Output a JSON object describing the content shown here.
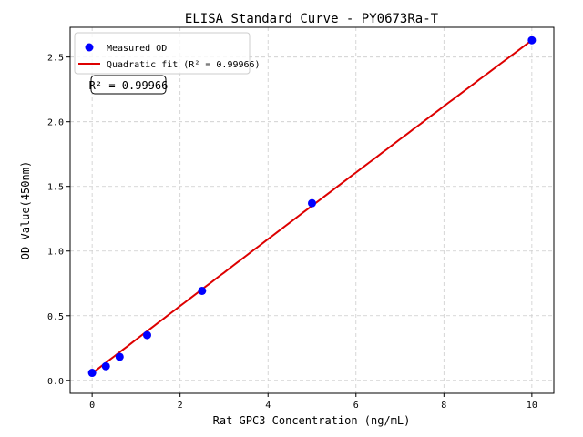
{
  "chart_data": {
    "type": "scatter",
    "title": "ELISA Standard Curve - PY0673Ra-T",
    "xlabel": "Rat GPC3 Concentration (ng/mL)",
    "ylabel": "OD Value(450nm)",
    "xlim": [
      -0.5,
      10.5
    ],
    "ylim": [
      -0.1,
      2.73
    ],
    "xticks": [
      0,
      2,
      4,
      6,
      8,
      10
    ],
    "yticks": [
      0.0,
      0.5,
      1.0,
      1.5,
      2.0,
      2.5
    ],
    "xtick_labels": [
      "0",
      "2",
      "4",
      "6",
      "8",
      "10"
    ],
    "ytick_labels": [
      "0.0",
      "0.5",
      "1.0",
      "1.5",
      "2.0",
      "2.5"
    ],
    "grid": true,
    "legend_position": "top-left",
    "series": [
      {
        "name": "Measured OD",
        "type": "scatter",
        "color": "#0000ff",
        "x": [
          0,
          0.3125,
          0.625,
          1.25,
          2.5,
          5,
          10
        ],
        "y": [
          0.058,
          0.109,
          0.182,
          0.35,
          0.692,
          1.37,
          2.63
        ]
      },
      {
        "name": "Quadratic fit (R² = 0.99966)",
        "type": "line",
        "color": "#dd0000",
        "coefficients": {
          "a": 0.055,
          "b": 0.2605,
          "c": -0.0003
        },
        "x_range": [
          0,
          10
        ]
      }
    ],
    "annotation": "R² = 0.99966"
  }
}
